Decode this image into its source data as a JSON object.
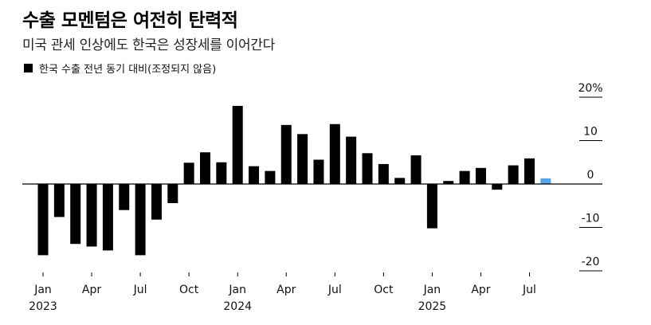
{
  "title": "수출 모멘텀은 여전히 탄력적",
  "subtitle": "미국 관세 인상에도 한국은 성장세를 이어간다",
  "legend_label": "한국 수출 전년 동기 대비(조정되지 않음)",
  "colors": {
    "bar": "#000000",
    "highlight": "#56a6e6",
    "grid": "#000000"
  },
  "chart_data": {
    "type": "bar",
    "title": "수출 모멘텀은 여전히 탄력적",
    "subtitle": "미국 관세 인상에도 한국은 성장세를 이어간다",
    "ylim": [
      -22,
      22
    ],
    "yticks": [
      20,
      10,
      0,
      -10,
      -20
    ],
    "ytick_labels": [
      "20%",
      "10",
      "0",
      "-10",
      "-20"
    ],
    "categories": [
      "2023-01",
      "2023-02",
      "2023-03",
      "2023-04",
      "2023-05",
      "2023-06",
      "2023-07",
      "2023-08",
      "2023-09",
      "2023-10",
      "2023-11",
      "2023-12",
      "2024-01",
      "2024-02",
      "2024-03",
      "2024-04",
      "2024-05",
      "2024-06",
      "2024-07",
      "2024-08",
      "2024-09",
      "2024-10",
      "2024-11",
      "2024-12",
      "2025-01",
      "2025-02",
      "2025-03",
      "2025-04",
      "2025-05",
      "2025-06",
      "2025-07",
      "2025-08"
    ],
    "x_tick_labels": [
      {
        "index": 0,
        "label": "Jan",
        "year": "2023"
      },
      {
        "index": 3,
        "label": "Apr"
      },
      {
        "index": 6,
        "label": "Jul"
      },
      {
        "index": 9,
        "label": "Oct"
      },
      {
        "index": 12,
        "label": "Jan",
        "year": "2024"
      },
      {
        "index": 15,
        "label": "Apr"
      },
      {
        "index": 18,
        "label": "Jul"
      },
      {
        "index": 21,
        "label": "Oct"
      },
      {
        "index": 24,
        "label": "Jan",
        "year": "2025"
      },
      {
        "index": 27,
        "label": "Apr"
      },
      {
        "index": 30,
        "label": "Jul"
      }
    ],
    "series": [
      {
        "name": "한국 수출 전년 동기 대비(조정되지 않음)",
        "values": [
          -16.4,
          -7.6,
          -13.8,
          -14.4,
          -15.3,
          -6.0,
          -16.4,
          -8.2,
          -4.4,
          4.9,
          7.3,
          5.0,
          18.0,
          4.1,
          3.0,
          13.6,
          11.5,
          5.6,
          13.8,
          10.9,
          7.1,
          4.6,
          1.4,
          6.6,
          -10.2,
          0.7,
          3.0,
          3.7,
          -1.3,
          4.3,
          5.9,
          1.3
        ]
      }
    ],
    "highlight_index": 31
  }
}
